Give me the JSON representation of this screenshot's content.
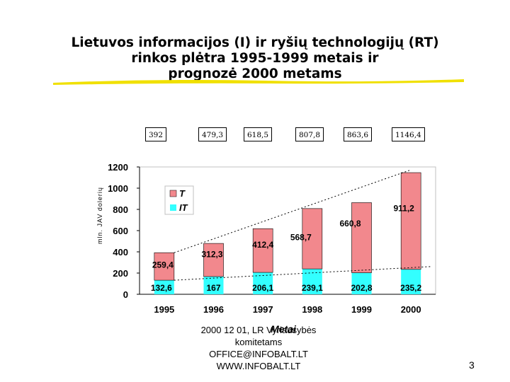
{
  "title_lines": [
    "Lietuvos informacijos (I) ir ryšių technologijų (RT)",
    "rinkos plėtra 1995-1999 metais ir",
    "prognozė 2000 metams"
  ],
  "colors": {
    "rt": "#f2888d",
    "it": "#33ffff",
    "underline": "#f0e000"
  },
  "chart_data": {
    "type": "bar",
    "stacked": true,
    "categories": [
      "1995",
      "1996",
      "1997",
      "1998",
      "1999",
      "2000"
    ],
    "series": [
      {
        "name": "IT",
        "values": [
          "132,6",
          "167",
          "206,1",
          "239,1",
          "202,8",
          "235,2"
        ]
      },
      {
        "name": "T",
        "values": [
          "259,4",
          "312,3",
          "412,4",
          "568,7",
          "660,8",
          "911,2"
        ]
      }
    ],
    "totals": [
      "392",
      "479,3",
      "618,5",
      "807,8",
      "863,6",
      "1146,4"
    ],
    "ylabel": "mln. JAV dolerių",
    "xlabel": "Metai",
    "ylim": [
      0,
      1200
    ],
    "yticks": [
      "0",
      "200",
      "400",
      "600",
      "800",
      "1000",
      "1200"
    ],
    "legend": {
      "placement": "top-left",
      "entries": [
        "T",
        "IT"
      ]
    },
    "trendlines": true
  },
  "footer_lines": [
    "2000 12 01, LR Vyriausybės",
    "komitetams",
    "OFFICE@INFOBALT.LT",
    "WWW.INFOBALT.LT"
  ],
  "page_number": "3"
}
